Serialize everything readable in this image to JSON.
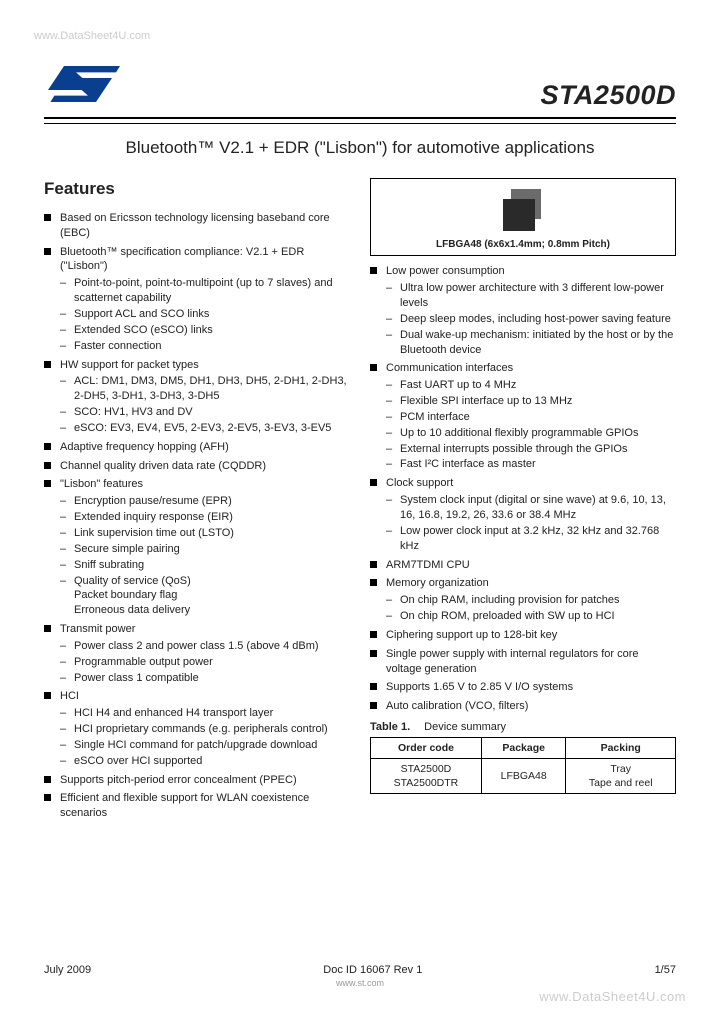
{
  "watermark_top": "www.DataSheet4U.com",
  "watermark_bottom": "www.DataSheet4U.com",
  "part_number": "STA2500D",
  "title": "Bluetooth™ V2.1 + EDR (\"Lisbon\") for automotive applications",
  "features_heading": "Features",
  "package_caption": "LFBGA48 (6x6x1.4mm; 0.8mm Pitch)",
  "col1": [
    {
      "t": "Based on Ericsson technology licensing baseband core (EBC)"
    },
    {
      "t": "Bluetooth™ specification compliance: V2.1 + EDR (\"Lisbon\")",
      "s": [
        "Point-to-point, point-to-multipoint (up to 7 slaves) and scatternet capability",
        "Support ACL and SCO links",
        "Extended SCO (eSCO) links",
        "Faster connection"
      ]
    },
    {
      "t": "HW support for packet types",
      "s": [
        "ACL: DM1, DM3, DM5, DH1, DH3, DH5, 2-DH1, 2-DH3, 2-DH5, 3-DH1, 3-DH3, 3-DH5",
        "SCO: HV1, HV3 and DV",
        "eSCO: EV3, EV4, EV5, 2-EV3, 2-EV5, 3-EV3, 3-EV5"
      ]
    },
    {
      "t": "Adaptive frequency hopping (AFH)"
    },
    {
      "t": "Channel quality driven data rate (CQDDR)"
    },
    {
      "t": "\"Lisbon\" features",
      "s": [
        "Encryption pause/resume (EPR)",
        "Extended inquiry response (EIR)",
        "Link supervision time out (LSTO)",
        "Secure simple pairing",
        "Sniff subrating",
        "Quality of service (QoS)\nPacket boundary flag\nErroneous data delivery"
      ]
    },
    {
      "t": "Transmit power",
      "s": [
        "Power class 2 and power class 1.5 (above 4 dBm)",
        "Programmable output power",
        "Power class 1 compatible"
      ]
    },
    {
      "t": "HCI",
      "s": [
        "HCI H4 and enhanced H4 transport layer",
        "HCI proprietary commands (e.g. peripherals control)",
        "Single HCI command for patch/upgrade download",
        "eSCO over HCI supported"
      ]
    },
    {
      "t": "Supports pitch-period error concealment (PPEC)"
    },
    {
      "t": "Efficient and flexible support for WLAN coexistence scenarios"
    }
  ],
  "col2": [
    {
      "t": "Low power consumption",
      "s": [
        "Ultra low power architecture with 3 different low-power levels",
        "Deep sleep modes, including host-power saving feature",
        "Dual wake-up mechanism: initiated by the host or by the Bluetooth device"
      ]
    },
    {
      "t": "Communication interfaces",
      "s": [
        "Fast UART up to 4 MHz",
        "Flexible SPI interface up to 13 MHz",
        "PCM interface",
        "Up to 10 additional flexibly programmable GPIOs",
        "External interrupts possible through the GPIOs",
        "Fast I²C interface as master"
      ]
    },
    {
      "t": "Clock support",
      "s": [
        "System clock input (digital or sine wave) at 9.6, 10, 13, 16, 16.8, 19.2, 26, 33.6 or 38.4 MHz",
        "Low power clock input at 3.2 kHz, 32 kHz and 32.768 kHz"
      ]
    },
    {
      "t": "ARM7TDMI CPU"
    },
    {
      "t": "Memory organization",
      "s": [
        "On chip RAM, including provision for patches",
        "On chip ROM, preloaded with SW up to HCI"
      ]
    },
    {
      "t": "Ciphering support up to 128-bit key"
    },
    {
      "t": "Single power supply with internal regulators for core voltage generation"
    },
    {
      "t": "Supports 1.65 V to 2.85 V I/O systems"
    },
    {
      "t": "Auto calibration (VCO, filters)"
    }
  ],
  "table": {
    "title_label": "Table 1.",
    "title_text": "Device summary",
    "headers": [
      "Order code",
      "Package",
      "Packing"
    ],
    "rows": [
      [
        "STA2500D\nSTA2500DTR",
        "LFBGA48",
        "Tray\nTape and reel"
      ]
    ]
  },
  "footer": {
    "date": "July 2009",
    "docid": "Doc ID 16067 Rev 1",
    "page": "1/57",
    "url": "www.st.com"
  },
  "colors": {
    "logo_blue": "#0a3e8f",
    "chip_dark": "#2a2a2a",
    "chip_light": "#6b6b6b"
  }
}
